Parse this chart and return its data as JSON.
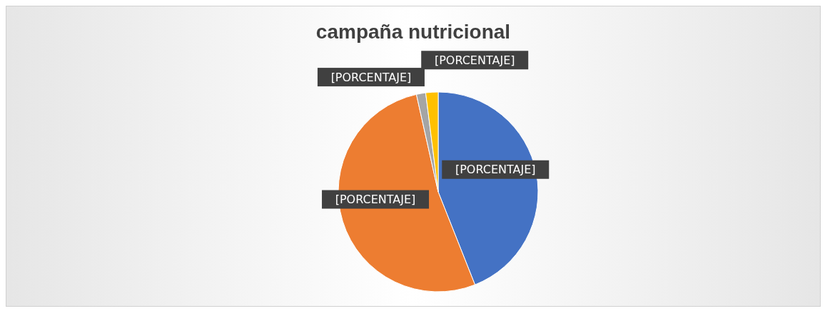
{
  "chart_data": {
    "type": "pie",
    "title": "campaña nutricional",
    "categories": [
      null,
      null,
      null,
      null
    ],
    "values": [
      44,
      52.5,
      1.5,
      2
    ],
    "colors": [
      "#4472c4",
      "#ed7d31",
      "#a5a5a5",
      "#ffc000"
    ],
    "value_labels": [
      "[PORCENTAJE]",
      "[PORCENTAJE]",
      "[PORCENTAJE]",
      "[PORCENTAJE]"
    ]
  }
}
